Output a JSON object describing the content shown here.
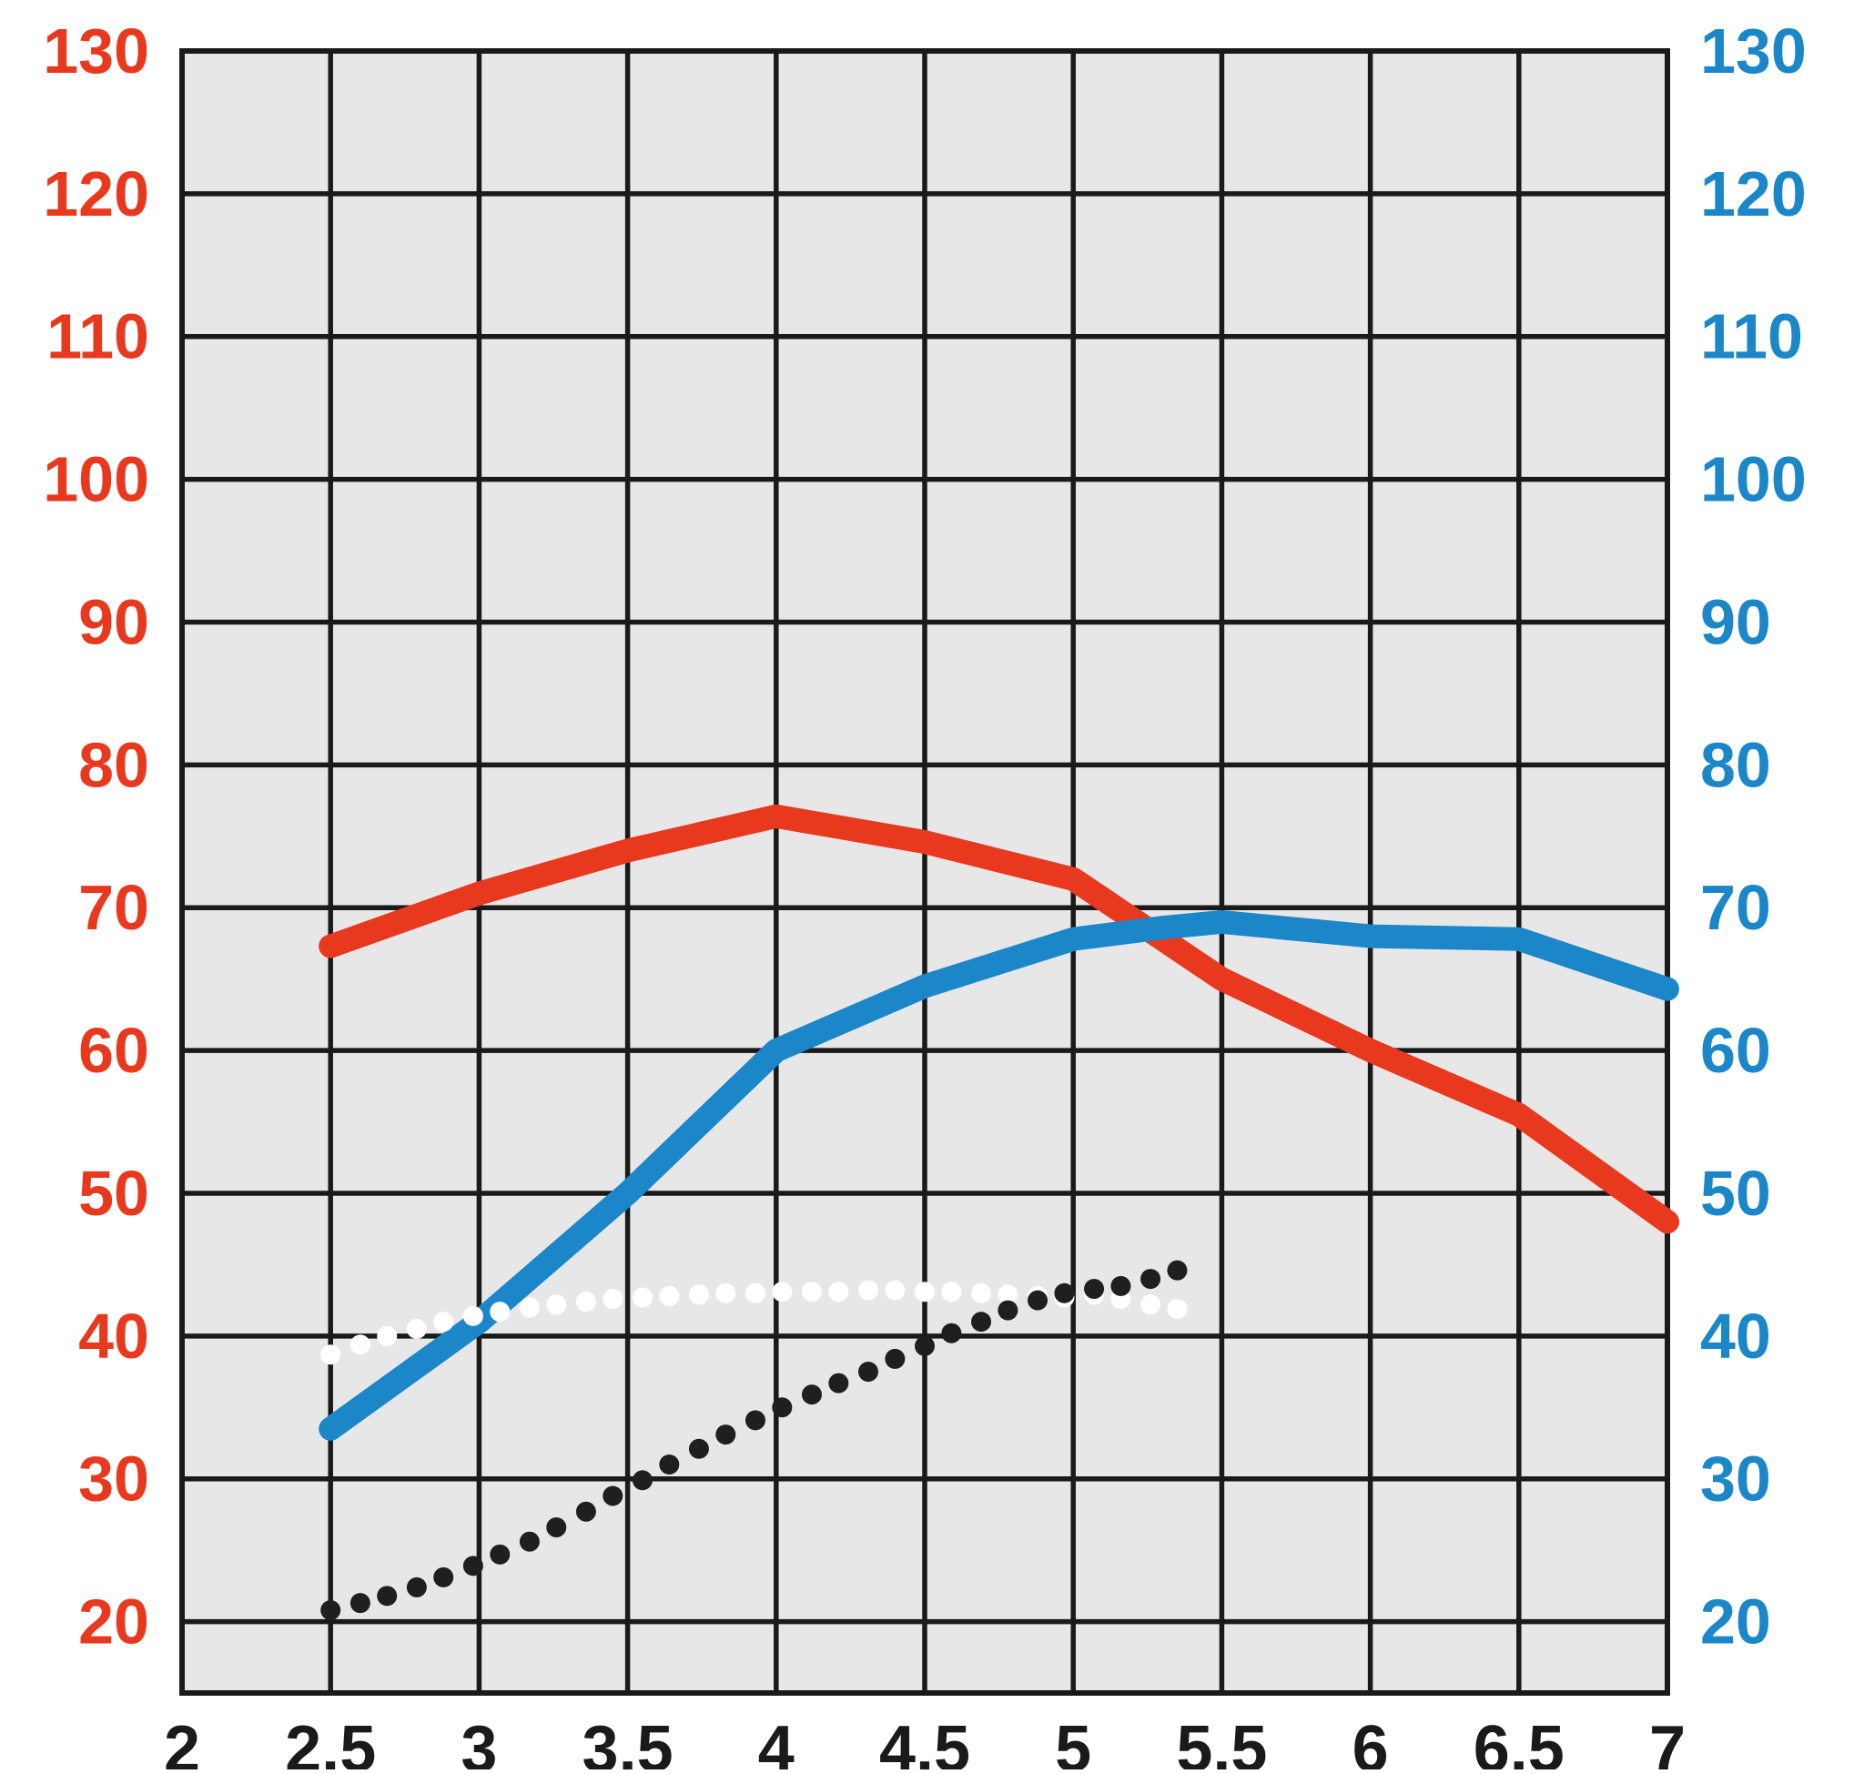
{
  "chart_data": {
    "type": "line",
    "title": "",
    "xlabel": "",
    "ylabel_left": "",
    "ylabel_right": "",
    "grid": true,
    "legend": "none",
    "plot_bg": "#e7e7e7",
    "grid_color": "#1a1a1a",
    "x_axis": {
      "min": 2,
      "max": 7,
      "ticks": [
        2,
        2.5,
        3,
        3.5,
        4,
        4.5,
        5,
        5.5,
        6,
        6.5,
        7
      ],
      "tick_labels": [
        "2",
        "2.5",
        "3",
        "3.5",
        "4",
        "4.5",
        "5",
        "5.5",
        "6",
        "6.5",
        "7"
      ],
      "label_color": "#1a1a1a"
    },
    "left_axis": {
      "color": "#e8391e",
      "ticks": [
        20,
        30,
        40,
        50,
        60,
        70,
        80,
        90,
        100,
        110,
        120,
        130
      ],
      "tick_labels": [
        "20",
        "30",
        "40",
        "50",
        "60",
        "70",
        "80",
        "90",
        "100",
        "110",
        "120",
        "130"
      ]
    },
    "right_axis": {
      "color": "#1b87c9",
      "ticks": [
        20,
        30,
        40,
        50,
        60,
        70,
        80,
        90,
        100,
        110,
        120,
        130
      ],
      "tick_labels": [
        "20",
        "30",
        "40",
        "50",
        "60",
        "70",
        "80",
        "90",
        "100",
        "110",
        "120",
        "130"
      ]
    },
    "ylim": [
      15,
      130
    ],
    "series": [
      {
        "name": "red-solid-line",
        "axis": "left",
        "style": "solid",
        "color": "#e8391e",
        "stroke_width": 26,
        "points": [
          [
            2.5,
            67.3
          ],
          [
            3,
            71
          ],
          [
            3.5,
            74
          ],
          [
            4,
            76.4
          ],
          [
            4.5,
            74.6
          ],
          [
            5,
            72
          ],
          [
            5.5,
            65
          ],
          [
            6,
            60
          ],
          [
            6.5,
            55.5
          ],
          [
            7,
            48
          ]
        ]
      },
      {
        "name": "blue-solid-line",
        "axis": "right",
        "style": "solid",
        "color": "#1b87c9",
        "stroke_width": 26,
        "points": [
          [
            2.5,
            33.5
          ],
          [
            3,
            41
          ],
          [
            3.5,
            50
          ],
          [
            4,
            60
          ],
          [
            4.5,
            64.5
          ],
          [
            5,
            67.8
          ],
          [
            5.3,
            68.6
          ],
          [
            5.5,
            69
          ],
          [
            6,
            68
          ],
          [
            6.5,
            67.8
          ],
          [
            7,
            64.3
          ]
        ]
      },
      {
        "name": "white-dotted-line",
        "axis": "left",
        "style": "dots",
        "color": "#ffffff",
        "dot_radius": 11,
        "points": [
          [
            2.5,
            38.7
          ],
          [
            2.6,
            39.4
          ],
          [
            2.69,
            40.0
          ],
          [
            2.79,
            40.5
          ],
          [
            2.88,
            41.0
          ],
          [
            2.98,
            41.4
          ],
          [
            3.07,
            41.7
          ],
          [
            3.17,
            42.0
          ],
          [
            3.26,
            42.2
          ],
          [
            3.36,
            42.4
          ],
          [
            3.45,
            42.6
          ],
          [
            3.55,
            42.7
          ],
          [
            3.64,
            42.8
          ],
          [
            3.74,
            42.9
          ],
          [
            3.83,
            43.0
          ],
          [
            3.93,
            43.0
          ],
          [
            4.02,
            43.1
          ],
          [
            4.12,
            43.1
          ],
          [
            4.21,
            43.1
          ],
          [
            4.31,
            43.2
          ],
          [
            4.4,
            43.2
          ],
          [
            4.5,
            43.1
          ],
          [
            4.59,
            43.1
          ],
          [
            4.69,
            43.0
          ],
          [
            4.78,
            42.9
          ],
          [
            4.88,
            42.8
          ],
          [
            4.97,
            42.7
          ],
          [
            5.07,
            42.9
          ],
          [
            5.16,
            42.6
          ],
          [
            5.26,
            42.2
          ],
          [
            5.35,
            41.9
          ]
        ]
      },
      {
        "name": "black-dotted-line",
        "axis": "left",
        "style": "dots",
        "color": "#1f1f1f",
        "dot_radius": 11,
        "points": [
          [
            2.5,
            20.8
          ],
          [
            2.6,
            21.3
          ],
          [
            2.69,
            21.8
          ],
          [
            2.79,
            22.4
          ],
          [
            2.88,
            23.1
          ],
          [
            2.98,
            23.9
          ],
          [
            3.07,
            24.7
          ],
          [
            3.17,
            25.6
          ],
          [
            3.26,
            26.6
          ],
          [
            3.36,
            27.7
          ],
          [
            3.45,
            28.8
          ],
          [
            3.55,
            29.9
          ],
          [
            3.64,
            31.0
          ],
          [
            3.74,
            32.1
          ],
          [
            3.83,
            33.1
          ],
          [
            3.93,
            34.1
          ],
          [
            4.02,
            35.0
          ],
          [
            4.12,
            35.9
          ],
          [
            4.21,
            36.7
          ],
          [
            4.31,
            37.5
          ],
          [
            4.4,
            38.4
          ],
          [
            4.5,
            39.3
          ],
          [
            4.59,
            40.2
          ],
          [
            4.69,
            41.0
          ],
          [
            4.78,
            41.8
          ],
          [
            4.88,
            42.5
          ],
          [
            4.97,
            43.0
          ],
          [
            5.07,
            43.3
          ],
          [
            5.16,
            43.5
          ],
          [
            5.26,
            44.0
          ],
          [
            5.35,
            44.6
          ]
        ]
      }
    ]
  }
}
